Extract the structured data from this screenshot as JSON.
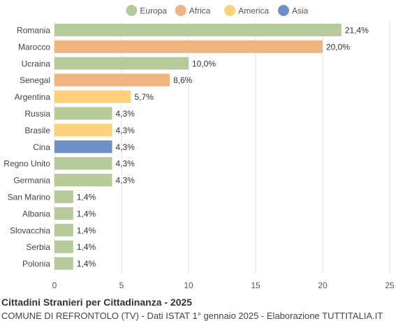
{
  "chart_data": {
    "type": "bar",
    "orientation": "horizontal",
    "categories": [
      "Romania",
      "Marocco",
      "Ucraina",
      "Senegal",
      "Argentina",
      "Russia",
      "Brasile",
      "Cina",
      "Regno Unito",
      "Germania",
      "San Marino",
      "Albania",
      "Slovacchia",
      "Serbia",
      "Polonia"
    ],
    "values": [
      21.4,
      20.0,
      10.0,
      8.6,
      5.7,
      4.3,
      4.3,
      4.3,
      4.3,
      4.3,
      1.4,
      1.4,
      1.4,
      1.4,
      1.4
    ],
    "value_labels": [
      "21,4%",
      "20,0%",
      "10,0%",
      "8,6%",
      "5,7%",
      "4,3%",
      "4,3%",
      "4,3%",
      "4,3%",
      "4,3%",
      "1,4%",
      "1,4%",
      "1,4%",
      "1,4%",
      "1,4%"
    ],
    "groups": [
      "Europa",
      "Africa",
      "Europa",
      "Africa",
      "America",
      "Europa",
      "America",
      "Asia",
      "Europa",
      "Europa",
      "Europa",
      "Europa",
      "Europa",
      "Europa",
      "Europa"
    ],
    "legend": [
      {
        "name": "Europa",
        "color": "#b5cc9a"
      },
      {
        "name": "Africa",
        "color": "#f0b47e"
      },
      {
        "name": "America",
        "color": "#fdd17a"
      },
      {
        "name": "Asia",
        "color": "#6f8fc9"
      }
    ],
    "legend_position": "top-center",
    "xlim": [
      0,
      25
    ],
    "xticks": [
      0,
      5,
      10,
      15,
      20,
      25
    ],
    "grid": "vertical",
    "title": "Cittadini Stranieri per Cittadinanza - 2025",
    "subtitle": "COMUNE DI REFRONTOLO (TV) - Dati ISTAT 1° gennaio 2025 - Elaborazione TUTTITALIA.IT"
  }
}
